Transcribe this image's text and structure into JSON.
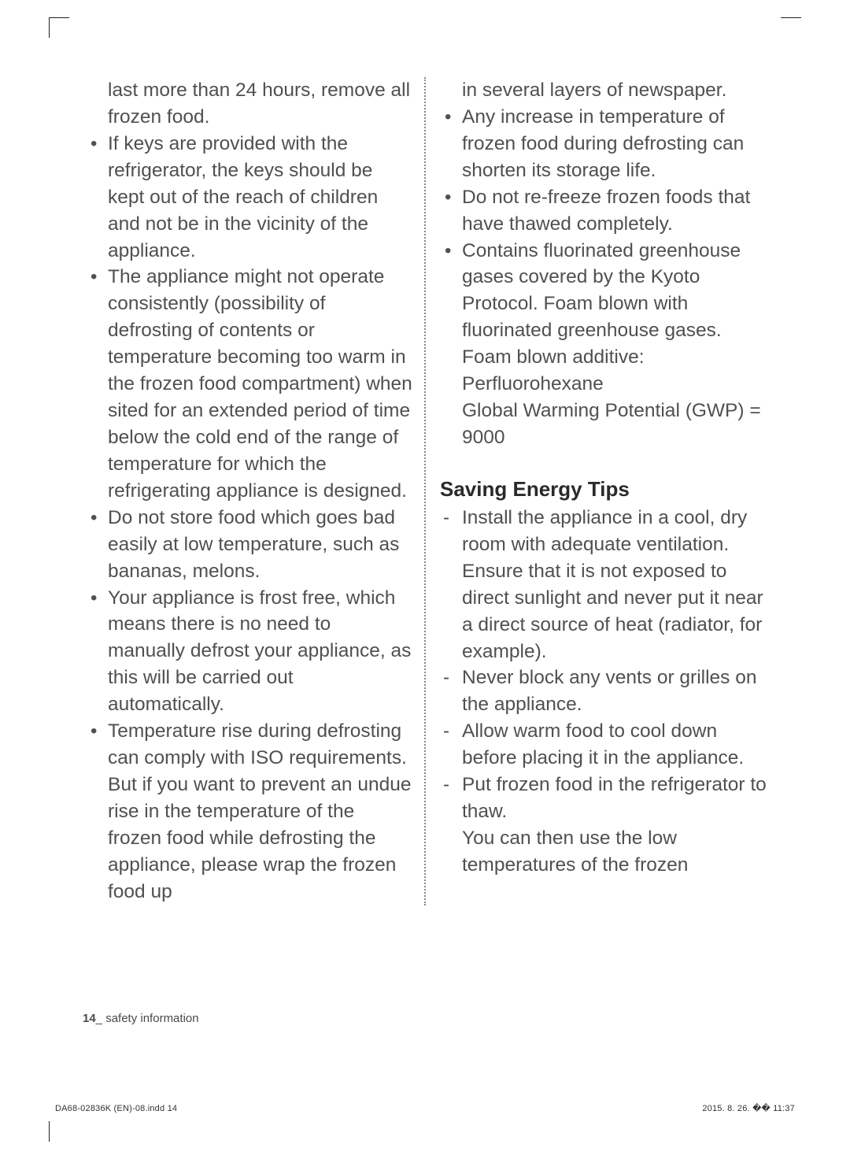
{
  "left": {
    "continued": "last more than 24 hours, remove all frozen food.",
    "bullets": [
      "If keys are provided with the refrigerator, the keys should be kept out of the reach of children and not be in the vicinity of the appliance.",
      "The appliance might not operate consistently (possibility of defrosting of contents or temperature becoming too warm in the frozen food compartment) when sited for an extended period of time below the cold end of the range of temperature for which the refrigerating appliance is designed.",
      "Do not store food which goes bad easily at low temperature, such as bananas, melons.",
      "Your appliance is frost free, which means there is no need to manually defrost your appliance, as this will be carried out automatically.",
      "Temperature rise during defrosting can comply with ISO requirements.\nBut if you want to prevent an undue rise in the temperature of the frozen food while defrosting the appliance, please wrap the frozen food up"
    ]
  },
  "right": {
    "continued": "in several layers of newspaper.",
    "bullets": [
      "Any increase in temperature of frozen food during defrosting can shorten its storage life.",
      "Do not re-freeze frozen foods that have thawed completely.",
      "Contains fluorinated greenhouse gases covered by the Kyoto Protocol. Foam blown with fluorinated greenhouse gases.\nFoam blown additive: Perfluorohexane\nGlobal Warming Potential (GWP) = 9000"
    ],
    "heading": "Saving Energy Tips",
    "dashes": [
      "Install the appliance in a cool, dry room with adequate ventilation.\nEnsure that it is not exposed to direct sunlight and never put it near a direct source of heat (radiator, for example).",
      "Never block any vents or grilles on the appliance.",
      "Allow warm food to cool down before placing it in the appliance.",
      "Put frozen food in the refrigerator to thaw.\nYou can then use the low temperatures of the frozen"
    ]
  },
  "footer": {
    "page_num": "14",
    "section": "_ safety information"
  },
  "print": {
    "left": "DA68-02836K (EN)-08.indd   14",
    "right": "2015. 8. 26.   �� 11:37"
  }
}
